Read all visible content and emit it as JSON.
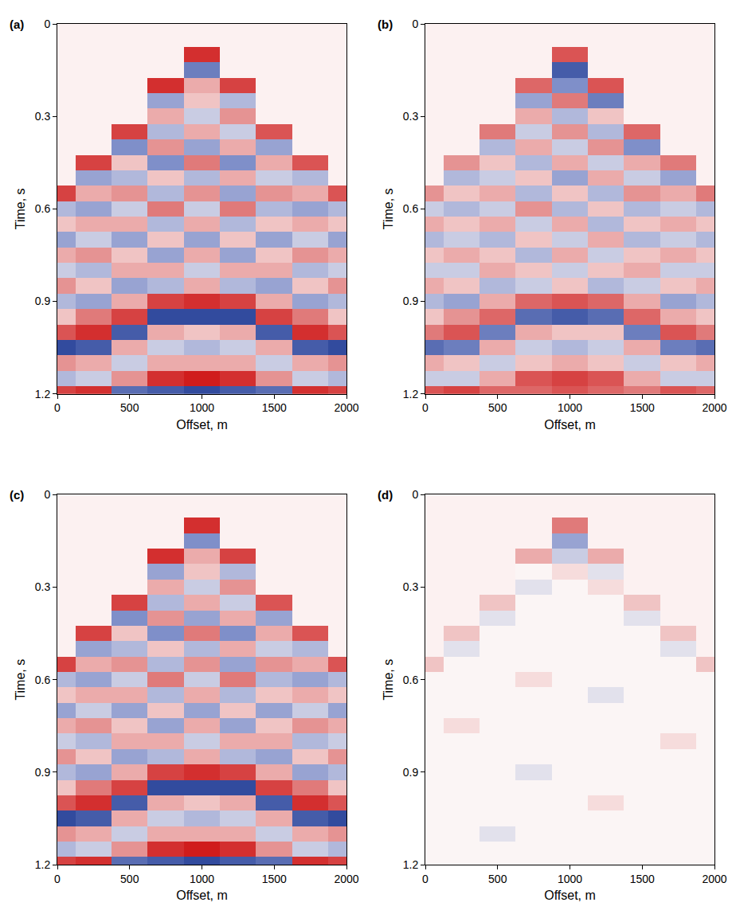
{
  "chart_data": [
    {
      "type": "heatmap",
      "label": "(a)",
      "xlabel": "Offset, m",
      "ylabel": "Time, s",
      "x": [
        0,
        250,
        500,
        750,
        1000,
        1250,
        1500,
        1750,
        2000
      ],
      "y": [
        0,
        0.05,
        0.1,
        0.15,
        0.2,
        0.25,
        0.3,
        0.35,
        0.4,
        0.45,
        0.5,
        0.55,
        0.6,
        0.65,
        0.7,
        0.75,
        0.8,
        0.85,
        0.9,
        0.95,
        1.0,
        1.05,
        1.1,
        1.15,
        1.2
      ],
      "z": [
        [
          null,
          null,
          null,
          null,
          null,
          null,
          null,
          null,
          null
        ],
        [
          null,
          null,
          null,
          null,
          null,
          null,
          null,
          null,
          null
        ],
        [
          null,
          null,
          null,
          null,
          0.9,
          null,
          null,
          null,
          null
        ],
        [
          null,
          null,
          null,
          null,
          -0.6,
          null,
          null,
          null,
          null
        ],
        [
          null,
          null,
          null,
          0.9,
          0.3,
          0.8,
          null,
          null,
          null
        ],
        [
          null,
          null,
          null,
          -0.4,
          0.2,
          -0.3,
          null,
          null,
          null
        ],
        [
          null,
          null,
          null,
          0.3,
          -0.2,
          0.4,
          null,
          null,
          null
        ],
        [
          null,
          null,
          0.8,
          -0.3,
          0.3,
          -0.2,
          0.7,
          null,
          null
        ],
        [
          null,
          null,
          -0.5,
          0.4,
          -0.4,
          0.3,
          -0.4,
          null,
          null
        ],
        [
          null,
          0.8,
          0.2,
          -0.5,
          0.5,
          -0.5,
          0.3,
          0.7,
          null
        ],
        [
          null,
          -0.4,
          -0.3,
          0.2,
          -0.3,
          0.3,
          -0.2,
          -0.3,
          null
        ],
        [
          0.8,
          0.3,
          0.4,
          -0.3,
          0.4,
          -0.4,
          0.4,
          0.3,
          0.7
        ],
        [
          -0.3,
          -0.4,
          -0.2,
          0.5,
          -0.2,
          0.5,
          -0.3,
          -0.4,
          -0.3
        ],
        [
          0.2,
          0.3,
          0.3,
          -0.3,
          0.3,
          -0.3,
          0.2,
          0.3,
          0.2
        ],
        [
          -0.4,
          -0.2,
          -0.4,
          0.2,
          -0.4,
          0.2,
          -0.4,
          -0.2,
          -0.4
        ],
        [
          0.3,
          0.4,
          0.2,
          -0.4,
          0.3,
          -0.4,
          0.2,
          0.4,
          0.3
        ],
        [
          -0.2,
          -0.3,
          0.3,
          0.3,
          -0.2,
          0.3,
          0.3,
          -0.3,
          -0.2
        ],
        [
          0.4,
          0.2,
          -0.4,
          -0.3,
          0.3,
          -0.3,
          -0.4,
          0.2,
          0.4
        ],
        [
          -0.3,
          -0.4,
          0.3,
          0.8,
          0.9,
          0.8,
          0.3,
          -0.4,
          -0.3
        ],
        [
          0.2,
          0.5,
          0.8,
          -0.9,
          -0.9,
          -0.9,
          0.8,
          0.5,
          0.2
        ],
        [
          0.7,
          0.9,
          -0.8,
          0.3,
          0.2,
          0.3,
          -0.8,
          0.9,
          0.7
        ],
        [
          -0.9,
          -0.8,
          0.3,
          -0.2,
          -0.3,
          -0.2,
          0.3,
          -0.8,
          -0.9
        ],
        [
          0.4,
          0.3,
          -0.2,
          0.3,
          0.3,
          0.3,
          -0.2,
          0.3,
          0.4
        ],
        [
          -0.3,
          -0.2,
          0.4,
          0.9,
          1.0,
          0.9,
          0.4,
          -0.2,
          -0.3
        ],
        [
          0.8,
          0.9,
          -0.7,
          -0.8,
          -0.9,
          -0.8,
          -0.7,
          0.9,
          0.8
        ]
      ],
      "zlim": [
        -1,
        1
      ],
      "xlim": [
        0,
        2000
      ],
      "xticks": [
        0,
        500,
        1000,
        1500,
        2000
      ],
      "ylim": [
        1.2,
        0
      ],
      "yticks": [
        0,
        0.3,
        0.6,
        0.9,
        1.2
      ]
    },
    {
      "type": "heatmap",
      "label": "(b)",
      "xlabel": "Offset, m",
      "ylabel": "Time, s",
      "x": [
        0,
        250,
        500,
        750,
        1000,
        1250,
        1500,
        1750,
        2000
      ],
      "y": [
        0,
        0.05,
        0.1,
        0.15,
        0.2,
        0.25,
        0.3,
        0.35,
        0.4,
        0.45,
        0.5,
        0.55,
        0.6,
        0.65,
        0.7,
        0.75,
        0.8,
        0.85,
        0.9,
        0.95,
        1.0,
        1.05,
        1.1,
        1.15,
        1.2
      ],
      "z": [
        [
          null,
          null,
          null,
          null,
          null,
          null,
          null,
          null,
          null
        ],
        [
          null,
          null,
          null,
          null,
          null,
          null,
          null,
          null,
          null
        ],
        [
          null,
          null,
          null,
          null,
          0.7,
          null,
          null,
          null,
          null
        ],
        [
          null,
          null,
          null,
          null,
          -0.8,
          null,
          null,
          null,
          null
        ],
        [
          null,
          null,
          null,
          0.6,
          -0.5,
          0.7,
          null,
          null,
          null
        ],
        [
          null,
          null,
          null,
          -0.4,
          0.5,
          -0.6,
          null,
          null,
          null
        ],
        [
          null,
          null,
          null,
          0.3,
          -0.3,
          0.2,
          null,
          null,
          null
        ],
        [
          null,
          null,
          0.5,
          -0.2,
          0.4,
          -0.3,
          0.6,
          null,
          null
        ],
        [
          null,
          null,
          -0.3,
          0.3,
          -0.2,
          0.4,
          -0.5,
          null,
          null
        ],
        [
          null,
          0.4,
          0.2,
          -0.3,
          0.3,
          -0.2,
          0.3,
          0.5,
          null
        ],
        [
          null,
          -0.3,
          -0.2,
          0.2,
          -0.4,
          0.3,
          -0.2,
          -0.4,
          null
        ],
        [
          0.4,
          0.2,
          0.3,
          -0.3,
          0.2,
          -0.3,
          0.4,
          0.3,
          0.5
        ],
        [
          -0.2,
          -0.3,
          -0.2,
          0.4,
          -0.3,
          0.2,
          -0.3,
          -0.2,
          -0.3
        ],
        [
          0.3,
          0.2,
          0.3,
          -0.2,
          0.3,
          -0.3,
          0.2,
          0.3,
          0.2
        ],
        [
          -0.3,
          -0.2,
          -0.3,
          0.2,
          -0.2,
          0.3,
          -0.3,
          -0.2,
          -0.3
        ],
        [
          0.2,
          0.3,
          0.2,
          -0.3,
          0.3,
          -0.2,
          0.2,
          0.3,
          0.2
        ],
        [
          -0.2,
          -0.2,
          0.3,
          0.2,
          -0.2,
          0.2,
          0.3,
          -0.2,
          -0.2
        ],
        [
          0.3,
          0.2,
          -0.3,
          -0.2,
          0.2,
          -0.3,
          -0.2,
          0.2,
          0.3
        ],
        [
          -0.3,
          -0.4,
          0.3,
          0.6,
          0.7,
          0.6,
          0.3,
          -0.4,
          -0.3
        ],
        [
          0.2,
          0.4,
          0.6,
          -0.7,
          -0.8,
          -0.7,
          0.6,
          0.3,
          0.2
        ],
        [
          0.5,
          0.7,
          -0.6,
          0.3,
          0.2,
          0.2,
          -0.6,
          0.7,
          0.5
        ],
        [
          -0.7,
          -0.6,
          0.3,
          -0.2,
          -0.3,
          -0.2,
          0.3,
          -0.6,
          -0.7
        ],
        [
          0.3,
          0.2,
          -0.2,
          0.2,
          0.3,
          0.2,
          -0.2,
          0.2,
          0.3
        ],
        [
          -0.2,
          -0.2,
          0.3,
          0.7,
          0.8,
          0.7,
          0.3,
          -0.2,
          -0.2
        ],
        [
          0.7,
          0.8,
          0.6,
          0.6,
          0.7,
          0.6,
          0.5,
          0.7,
          0.6
        ]
      ],
      "zlim": [
        -1,
        1
      ],
      "xlim": [
        0,
        2000
      ],
      "xticks": [
        0,
        500,
        1000,
        1500,
        2000
      ],
      "ylim": [
        1.2,
        0
      ],
      "yticks": [
        0,
        0.3,
        0.6,
        0.9,
        1.2
      ]
    },
    {
      "type": "heatmap",
      "label": "(c)",
      "xlabel": "Offset, m",
      "ylabel": "Time, s",
      "x": [
        0,
        250,
        500,
        750,
        1000,
        1250,
        1500,
        1750,
        2000
      ],
      "y": [
        0,
        0.05,
        0.1,
        0.15,
        0.2,
        0.25,
        0.3,
        0.35,
        0.4,
        0.45,
        0.5,
        0.55,
        0.6,
        0.65,
        0.7,
        0.75,
        0.8,
        0.85,
        0.9,
        0.95,
        1.0,
        1.05,
        1.1,
        1.15,
        1.2
      ],
      "z": [
        [
          null,
          null,
          null,
          null,
          null,
          null,
          null,
          null,
          null
        ],
        [
          null,
          null,
          null,
          null,
          null,
          null,
          null,
          null,
          null
        ],
        [
          null,
          null,
          null,
          null,
          0.9,
          null,
          null,
          null,
          null
        ],
        [
          null,
          null,
          null,
          null,
          -0.5,
          null,
          null,
          null,
          null
        ],
        [
          null,
          null,
          null,
          0.9,
          0.3,
          0.8,
          null,
          null,
          null
        ],
        [
          null,
          null,
          null,
          -0.4,
          0.2,
          -0.3,
          null,
          null,
          null
        ],
        [
          null,
          null,
          null,
          0.3,
          -0.2,
          0.4,
          null,
          null,
          null
        ],
        [
          null,
          null,
          0.8,
          -0.3,
          0.3,
          -0.2,
          0.7,
          null,
          null
        ],
        [
          null,
          null,
          -0.5,
          0.4,
          -0.4,
          0.3,
          -0.4,
          null,
          null
        ],
        [
          null,
          0.8,
          0.2,
          -0.5,
          0.5,
          -0.5,
          0.3,
          0.7,
          null
        ],
        [
          null,
          -0.4,
          -0.3,
          0.2,
          -0.3,
          0.3,
          -0.2,
          -0.3,
          null
        ],
        [
          0.8,
          0.3,
          0.4,
          -0.3,
          0.4,
          -0.4,
          0.4,
          0.3,
          0.7
        ],
        [
          -0.3,
          -0.4,
          -0.2,
          0.5,
          -0.2,
          0.5,
          -0.3,
          -0.4,
          -0.3
        ],
        [
          0.2,
          0.3,
          0.3,
          -0.3,
          0.3,
          -0.3,
          0.2,
          0.3,
          0.2
        ],
        [
          -0.4,
          -0.2,
          -0.4,
          0.2,
          -0.4,
          0.2,
          -0.4,
          -0.2,
          -0.4
        ],
        [
          0.3,
          0.4,
          0.2,
          -0.4,
          0.3,
          -0.4,
          0.2,
          0.4,
          0.3
        ],
        [
          -0.2,
          -0.3,
          0.3,
          0.3,
          -0.2,
          0.3,
          0.3,
          -0.3,
          -0.2
        ],
        [
          0.4,
          0.2,
          -0.4,
          -0.3,
          0.3,
          -0.3,
          -0.4,
          0.2,
          0.4
        ],
        [
          -0.3,
          -0.4,
          0.3,
          0.8,
          0.9,
          0.8,
          0.3,
          -0.4,
          -0.3
        ],
        [
          0.2,
          0.5,
          0.8,
          -0.9,
          -0.9,
          -0.9,
          0.8,
          0.5,
          0.2
        ],
        [
          0.7,
          0.9,
          -0.8,
          0.3,
          0.2,
          0.3,
          -0.8,
          0.9,
          0.7
        ],
        [
          -0.9,
          -0.8,
          0.3,
          -0.2,
          -0.3,
          -0.2,
          0.3,
          -0.8,
          -0.9
        ],
        [
          0.4,
          0.3,
          -0.2,
          0.3,
          0.3,
          0.3,
          -0.2,
          0.3,
          0.4
        ],
        [
          -0.3,
          -0.2,
          0.4,
          0.9,
          1.0,
          0.9,
          0.4,
          -0.2,
          -0.3
        ],
        [
          0.8,
          0.9,
          -0.7,
          -0.8,
          -0.9,
          -0.8,
          -0.7,
          0.9,
          0.8
        ]
      ],
      "zlim": [
        -1,
        1
      ],
      "xlim": [
        0,
        2000
      ],
      "xticks": [
        0,
        500,
        1000,
        1500,
        2000
      ],
      "ylim": [
        1.2,
        0
      ],
      "yticks": [
        0,
        0.3,
        0.6,
        0.9,
        1.2
      ]
    },
    {
      "type": "heatmap",
      "label": "(d)",
      "xlabel": "Offset, m",
      "ylabel": "Time, s",
      "x": [
        0,
        250,
        500,
        750,
        1000,
        1250,
        1500,
        1750,
        2000
      ],
      "y": [
        0,
        0.05,
        0.1,
        0.15,
        0.2,
        0.25,
        0.3,
        0.35,
        0.4,
        0.45,
        0.5,
        0.55,
        0.6,
        0.65,
        0.7,
        0.75,
        0.8,
        0.85,
        0.9,
        0.95,
        1.0,
        1.05,
        1.1,
        1.15,
        1.2
      ],
      "z": [
        [
          null,
          null,
          null,
          null,
          null,
          null,
          null,
          null,
          null
        ],
        [
          null,
          null,
          null,
          null,
          null,
          null,
          null,
          null,
          null
        ],
        [
          null,
          null,
          null,
          null,
          0.5,
          null,
          null,
          null,
          null
        ],
        [
          null,
          null,
          null,
          null,
          -0.4,
          null,
          null,
          null,
          null
        ],
        [
          null,
          null,
          null,
          0.3,
          -0.2,
          0.3,
          null,
          null,
          null
        ],
        [
          null,
          null,
          null,
          0,
          0.1,
          -0.1,
          null,
          null,
          null
        ],
        [
          null,
          null,
          null,
          -0.1,
          0,
          0.1,
          null,
          null,
          null
        ],
        [
          null,
          null,
          0.2,
          0,
          0,
          0,
          0.2,
          null,
          null
        ],
        [
          null,
          null,
          -0.1,
          0,
          0,
          0,
          -0.1,
          null,
          null
        ],
        [
          null,
          0.2,
          0,
          0,
          0,
          0,
          0,
          0.2,
          null
        ],
        [
          null,
          -0.1,
          0,
          0,
          0,
          0,
          0,
          -0.1,
          null
        ],
        [
          0.2,
          0,
          0,
          0,
          0,
          0,
          0,
          0,
          0.2
        ],
        [
          0,
          0,
          0,
          0.1,
          0,
          0,
          0,
          0,
          0
        ],
        [
          0,
          0,
          0,
          0,
          0,
          -0.1,
          0,
          0,
          0
        ],
        [
          0,
          0,
          0,
          0,
          0,
          0,
          0,
          0,
          0
        ],
        [
          0,
          0.1,
          0,
          0,
          0,
          0,
          0,
          0,
          0
        ],
        [
          0,
          0,
          0,
          0,
          0,
          0,
          0,
          0.1,
          0
        ],
        [
          0,
          0,
          0,
          0,
          0,
          0,
          0,
          0,
          0
        ],
        [
          0,
          0,
          0,
          -0.1,
          0,
          0,
          0,
          0,
          0
        ],
        [
          0,
          0,
          0,
          0,
          0,
          0,
          0,
          0,
          0
        ],
        [
          0,
          0,
          0,
          0,
          0,
          0.1,
          0,
          0,
          0
        ],
        [
          0,
          0,
          0,
          0,
          0,
          0,
          0,
          0,
          0
        ],
        [
          0,
          0,
          -0.1,
          0,
          0,
          0,
          0,
          0,
          0
        ],
        [
          0,
          0,
          0,
          0,
          0,
          0,
          0,
          0,
          0
        ],
        [
          0,
          0,
          0,
          0,
          0,
          0,
          0,
          0,
          0
        ]
      ],
      "zlim": [
        -1,
        1
      ],
      "xlim": [
        0,
        2000
      ],
      "xticks": [
        0,
        500,
        1000,
        1500,
        2000
      ],
      "ylim": [
        1.2,
        0
      ],
      "yticks": [
        0,
        0.3,
        0.6,
        0.9,
        1.2
      ]
    }
  ]
}
